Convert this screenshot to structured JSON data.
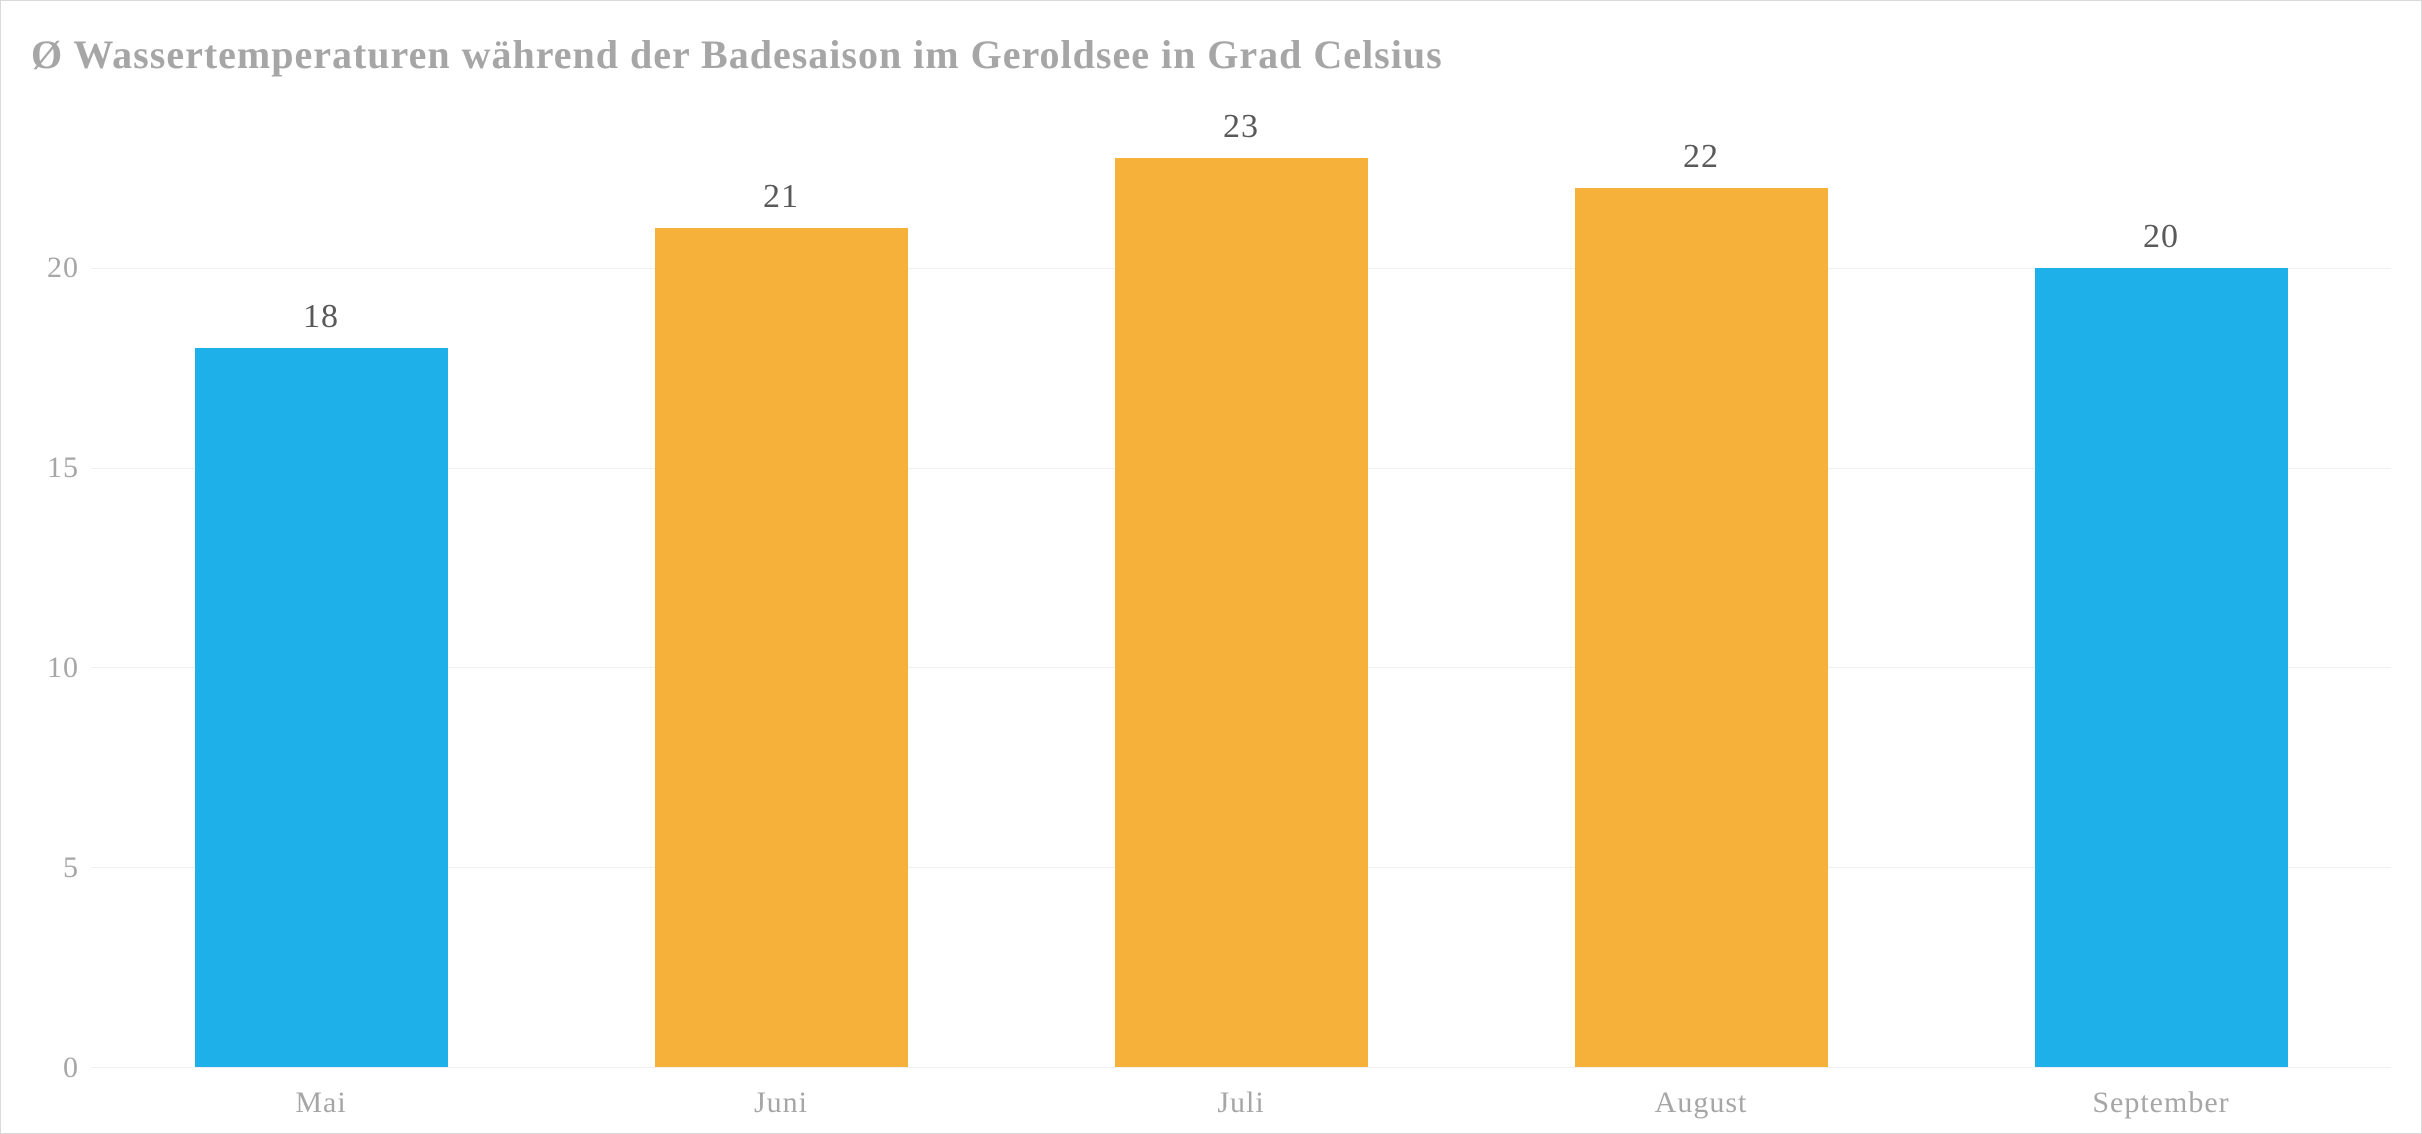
{
  "chart": {
    "type": "bar",
    "title": "Ø Wassertemperaturen während der Badesaison im Geroldsee in Grad Celsius",
    "title_color": "#a6a6a6",
    "title_fontsize": 40,
    "title_fontweight": "bold",
    "categories": [
      "Mai",
      "Juni",
      "Juli",
      "August",
      "September"
    ],
    "values": [
      18,
      21,
      23,
      22,
      20
    ],
    "bar_colors": [
      "#1eb0e9",
      "#f6b13b",
      "#f6b13b",
      "#f6b13b",
      "#1eb0e9"
    ],
    "bar_width": 0.55,
    "y_ticks": [
      0,
      5,
      10,
      15,
      20
    ],
    "ylim_min": 0,
    "ylim_max": 24,
    "background_color": "#ffffff",
    "grid_color": "#f0f0f0",
    "axis_line_color": "#bfbfbf",
    "label_color": "#a6a6a6",
    "value_label_color": "#595959",
    "axis_label_fontsize": 30,
    "value_label_fontsize": 34
  }
}
